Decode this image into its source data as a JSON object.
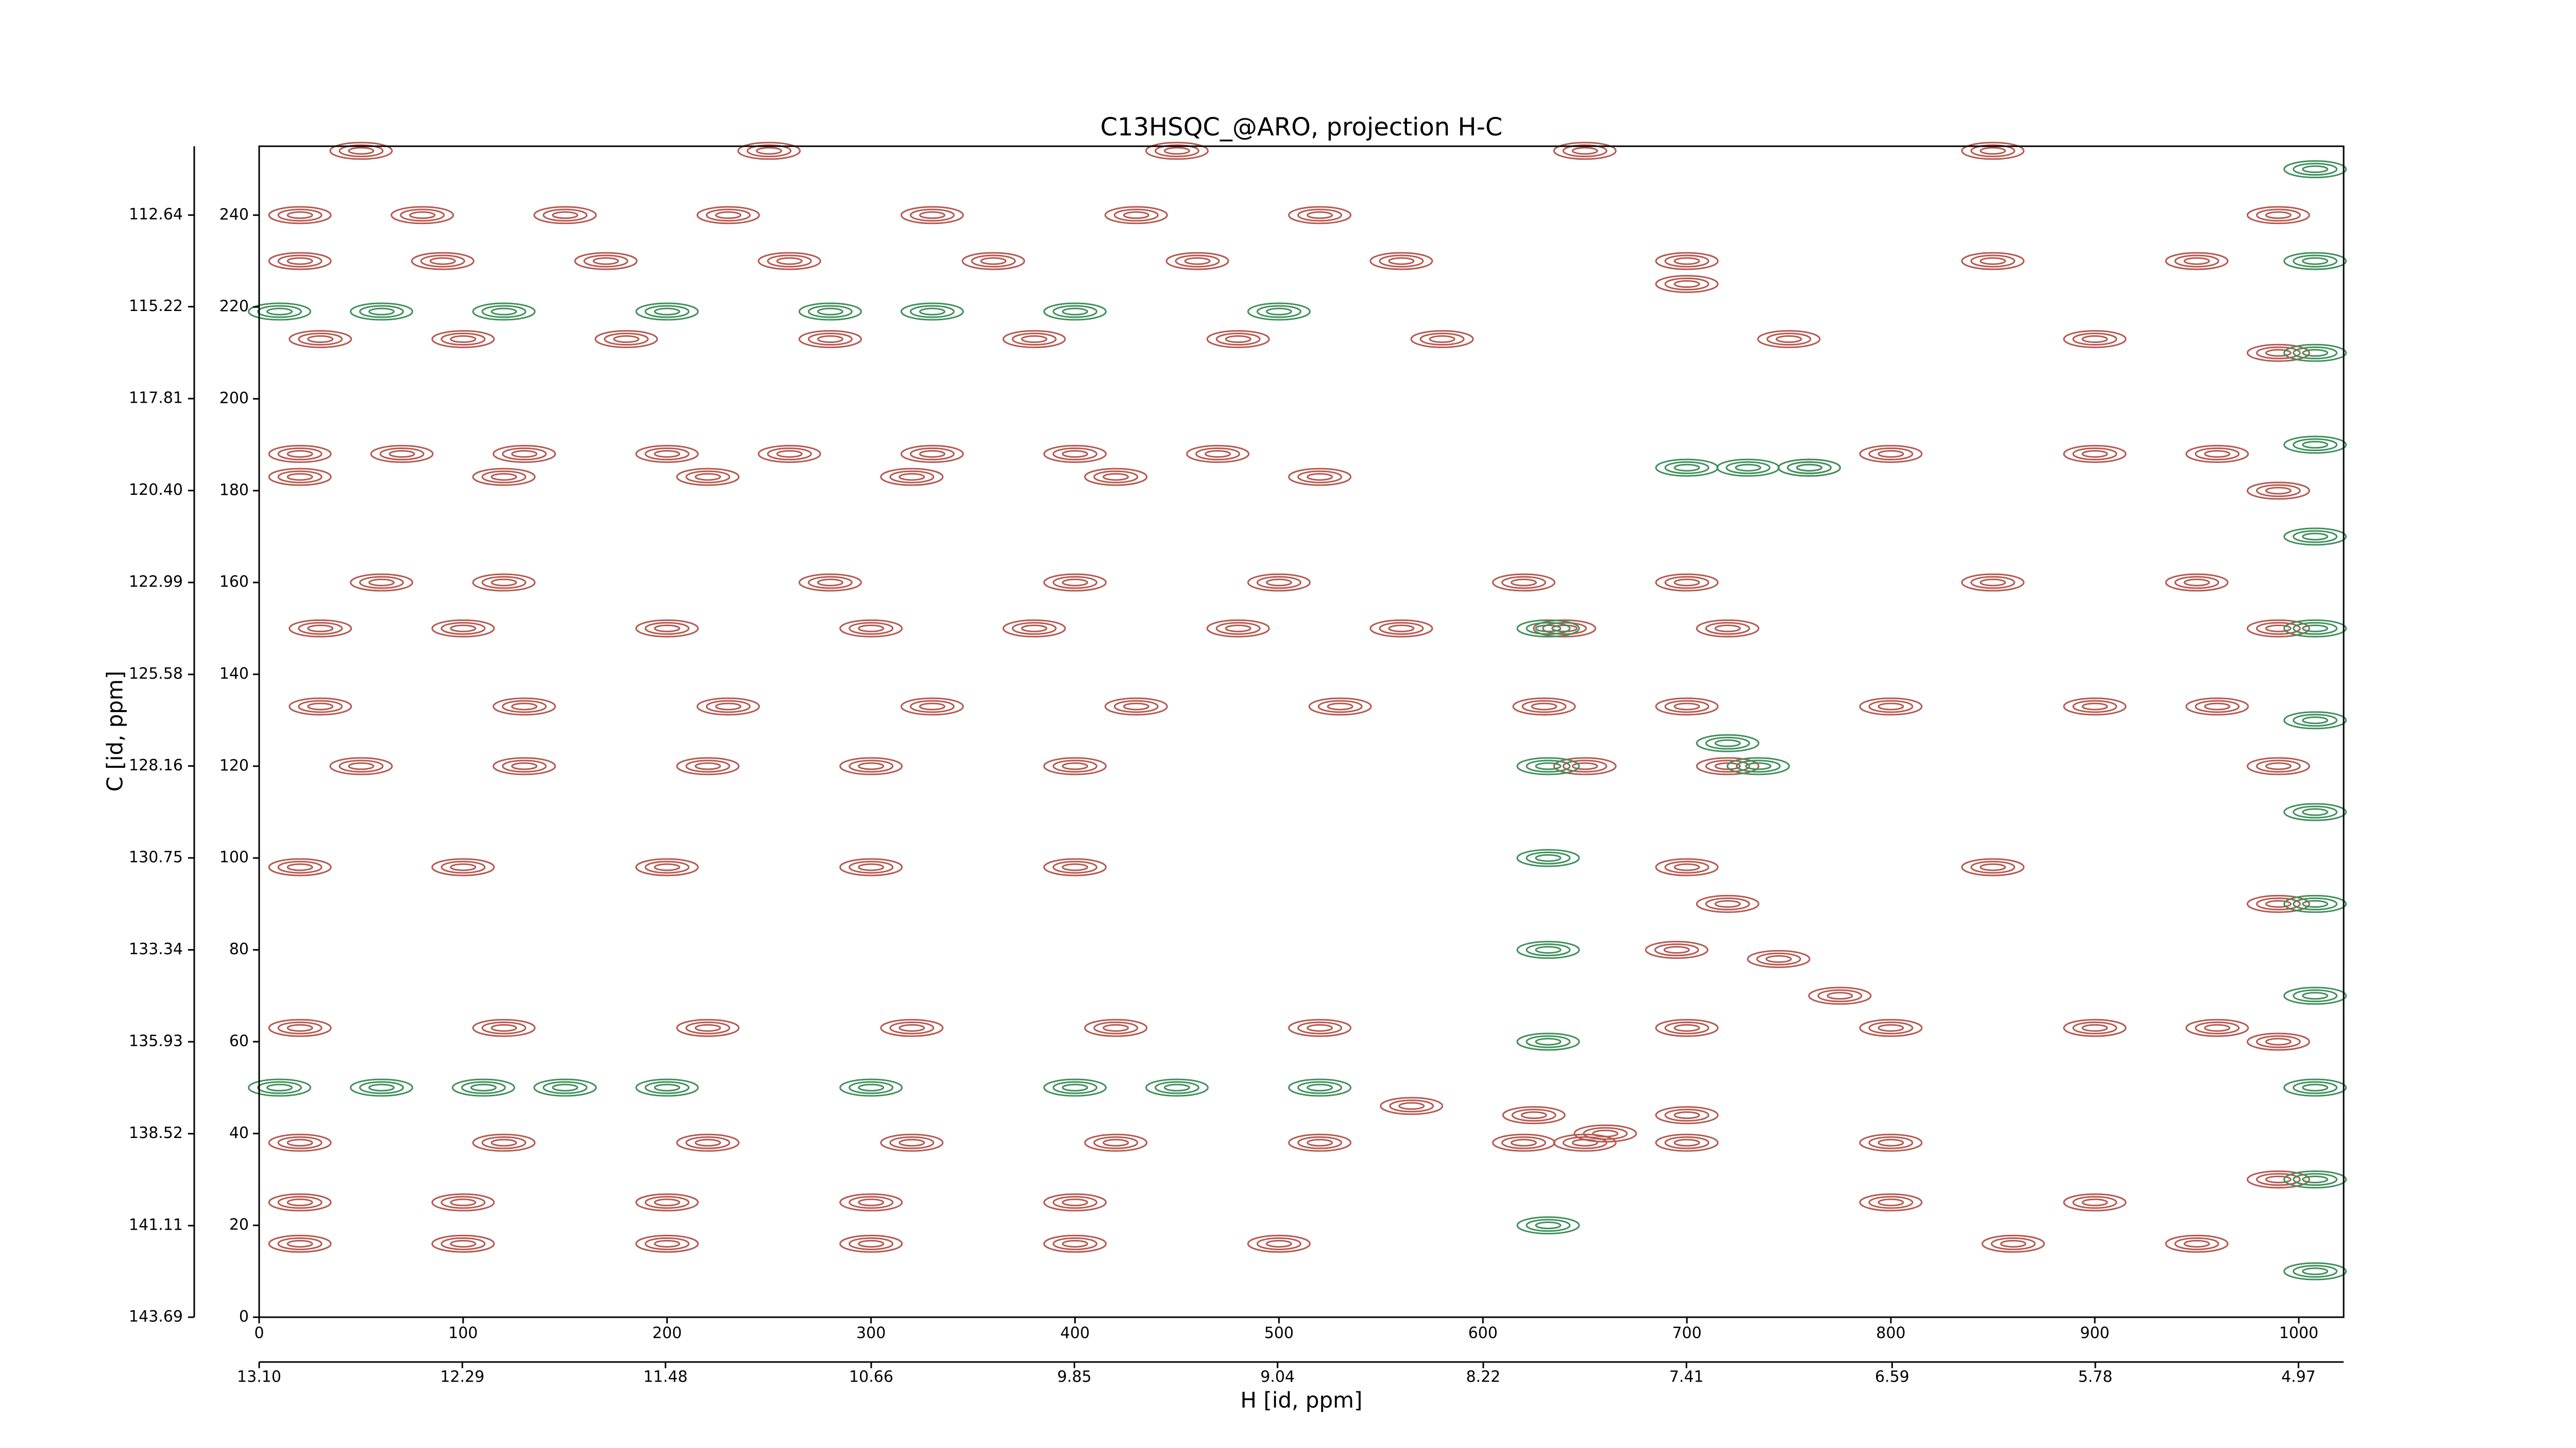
{
  "chart_data": {
    "type": "contour",
    "title": "C13HSQC_@ARO, projection H-C",
    "xlabel": "H [id, ppm]",
    "ylabel": "C [id, ppm]",
    "xlim": [
      0,
      1022
    ],
    "xticks": [
      0,
      100,
      200,
      300,
      400,
      500,
      600,
      700,
      800,
      900,
      1000
    ],
    "ylim": [
      0,
      255
    ],
    "yticks": [
      0,
      20,
      40,
      60,
      80,
      100,
      120,
      140,
      160,
      180,
      200,
      220,
      240
    ],
    "x2lim": [
      13.1,
      4.79
    ],
    "x2ticks": [
      {
        "value": 13.1,
        "label": "13.10"
      },
      12.29,
      11.48,
      10.66,
      9.85,
      9.04,
      8.22,
      7.41,
      6.59,
      5.78,
      4.97
    ],
    "y2lim": [
      143.69,
      110.7
    ],
    "y2ticks": [
      143.69,
      141.11,
      138.52,
      135.93,
      133.34,
      130.75,
      128.16,
      125.58,
      122.99,
      {
        "value": 120.4,
        "label": "120.40"
      },
      117.81,
      115.22,
      112.64
    ],
    "series": [
      {
        "color": "#b5584f",
        "x": [
          50,
          250,
          450,
          650,
          850,
          20,
          80,
          150,
          230,
          330,
          430,
          520,
          20,
          90,
          170,
          260,
          360,
          460,
          560,
          700,
          850,
          950,
          30,
          100,
          180,
          280,
          380,
          480,
          580,
          750,
          900,
          20,
          70,
          130,
          200,
          260,
          330,
          400,
          470,
          800,
          900,
          960,
          20,
          120,
          220,
          320,
          420,
          520,
          60,
          120,
          280,
          400,
          500,
          620,
          700,
          850,
          950,
          30,
          100,
          200,
          300,
          380,
          480,
          560,
          640,
          720,
          30,
          130,
          230,
          330,
          430,
          530,
          630,
          700,
          800,
          900,
          960,
          50,
          130,
          220,
          300,
          400,
          650,
          720,
          20,
          100,
          200,
          300,
          400,
          700,
          850,
          20,
          120,
          220,
          320,
          420,
          520,
          700,
          800,
          900,
          960,
          20,
          120,
          220,
          320,
          420,
          520,
          620,
          650,
          700,
          800,
          20,
          100,
          200,
          300,
          400,
          800,
          900,
          20,
          100,
          200,
          300,
          400,
          500,
          860,
          950,
          565,
          625,
          660,
          700,
          695,
          720,
          745,
          775,
          760,
          700,
          990,
          990,
          990,
          990,
          990,
          990,
          990,
          990
        ],
        "y": [
          254,
          254,
          254,
          254,
          254,
          240,
          240,
          240,
          240,
          240,
          240,
          240,
          230,
          230,
          230,
          230,
          230,
          230,
          230,
          230,
          230,
          230,
          213,
          213,
          213,
          213,
          213,
          213,
          213,
          213,
          213,
          188,
          188,
          188,
          188,
          188,
          188,
          188,
          188,
          188,
          188,
          188,
          183,
          183,
          183,
          183,
          183,
          183,
          160,
          160,
          160,
          160,
          160,
          160,
          160,
          160,
          160,
          150,
          150,
          150,
          150,
          150,
          150,
          150,
          150,
          150,
          133,
          133,
          133,
          133,
          133,
          133,
          133,
          133,
          133,
          133,
          133,
          120,
          120,
          120,
          120,
          120,
          120,
          120,
          98,
          98,
          98,
          98,
          98,
          98,
          98,
          63,
          63,
          63,
          63,
          63,
          63,
          63,
          63,
          63,
          63,
          38,
          38,
          38,
          38,
          38,
          38,
          38,
          38,
          38,
          38,
          25,
          25,
          25,
          25,
          25,
          25,
          25,
          16,
          16,
          16,
          16,
          16,
          16,
          16,
          16,
          46,
          44,
          40,
          44,
          80,
          90,
          78,
          70,
          185,
          225,
          240,
          210,
          180,
          150,
          120,
          90,
          60,
          30
        ]
      },
      {
        "color": "#3f8f5a",
        "x": [
          700,
          730,
          760,
          632,
          632,
          632,
          632,
          632,
          632,
          720,
          735,
          1008,
          1008,
          1008,
          1008,
          1008,
          1008,
          1008,
          1008,
          1008,
          1008,
          1008,
          1008,
          1008,
          10,
          60,
          120,
          200,
          280,
          330,
          400,
          500,
          10,
          60,
          110,
          150,
          200,
          300,
          400,
          450,
          520
        ],
        "y": [
          185,
          185,
          185,
          150,
          120,
          100,
          80,
          60,
          20,
          125,
          120,
          250,
          230,
          210,
          190,
          170,
          150,
          130,
          110,
          90,
          70,
          50,
          30,
          10,
          219,
          219,
          219,
          219,
          219,
          219,
          219,
          219,
          50,
          50,
          50,
          50,
          50,
          50,
          50,
          50,
          50
        ]
      }
    ]
  }
}
